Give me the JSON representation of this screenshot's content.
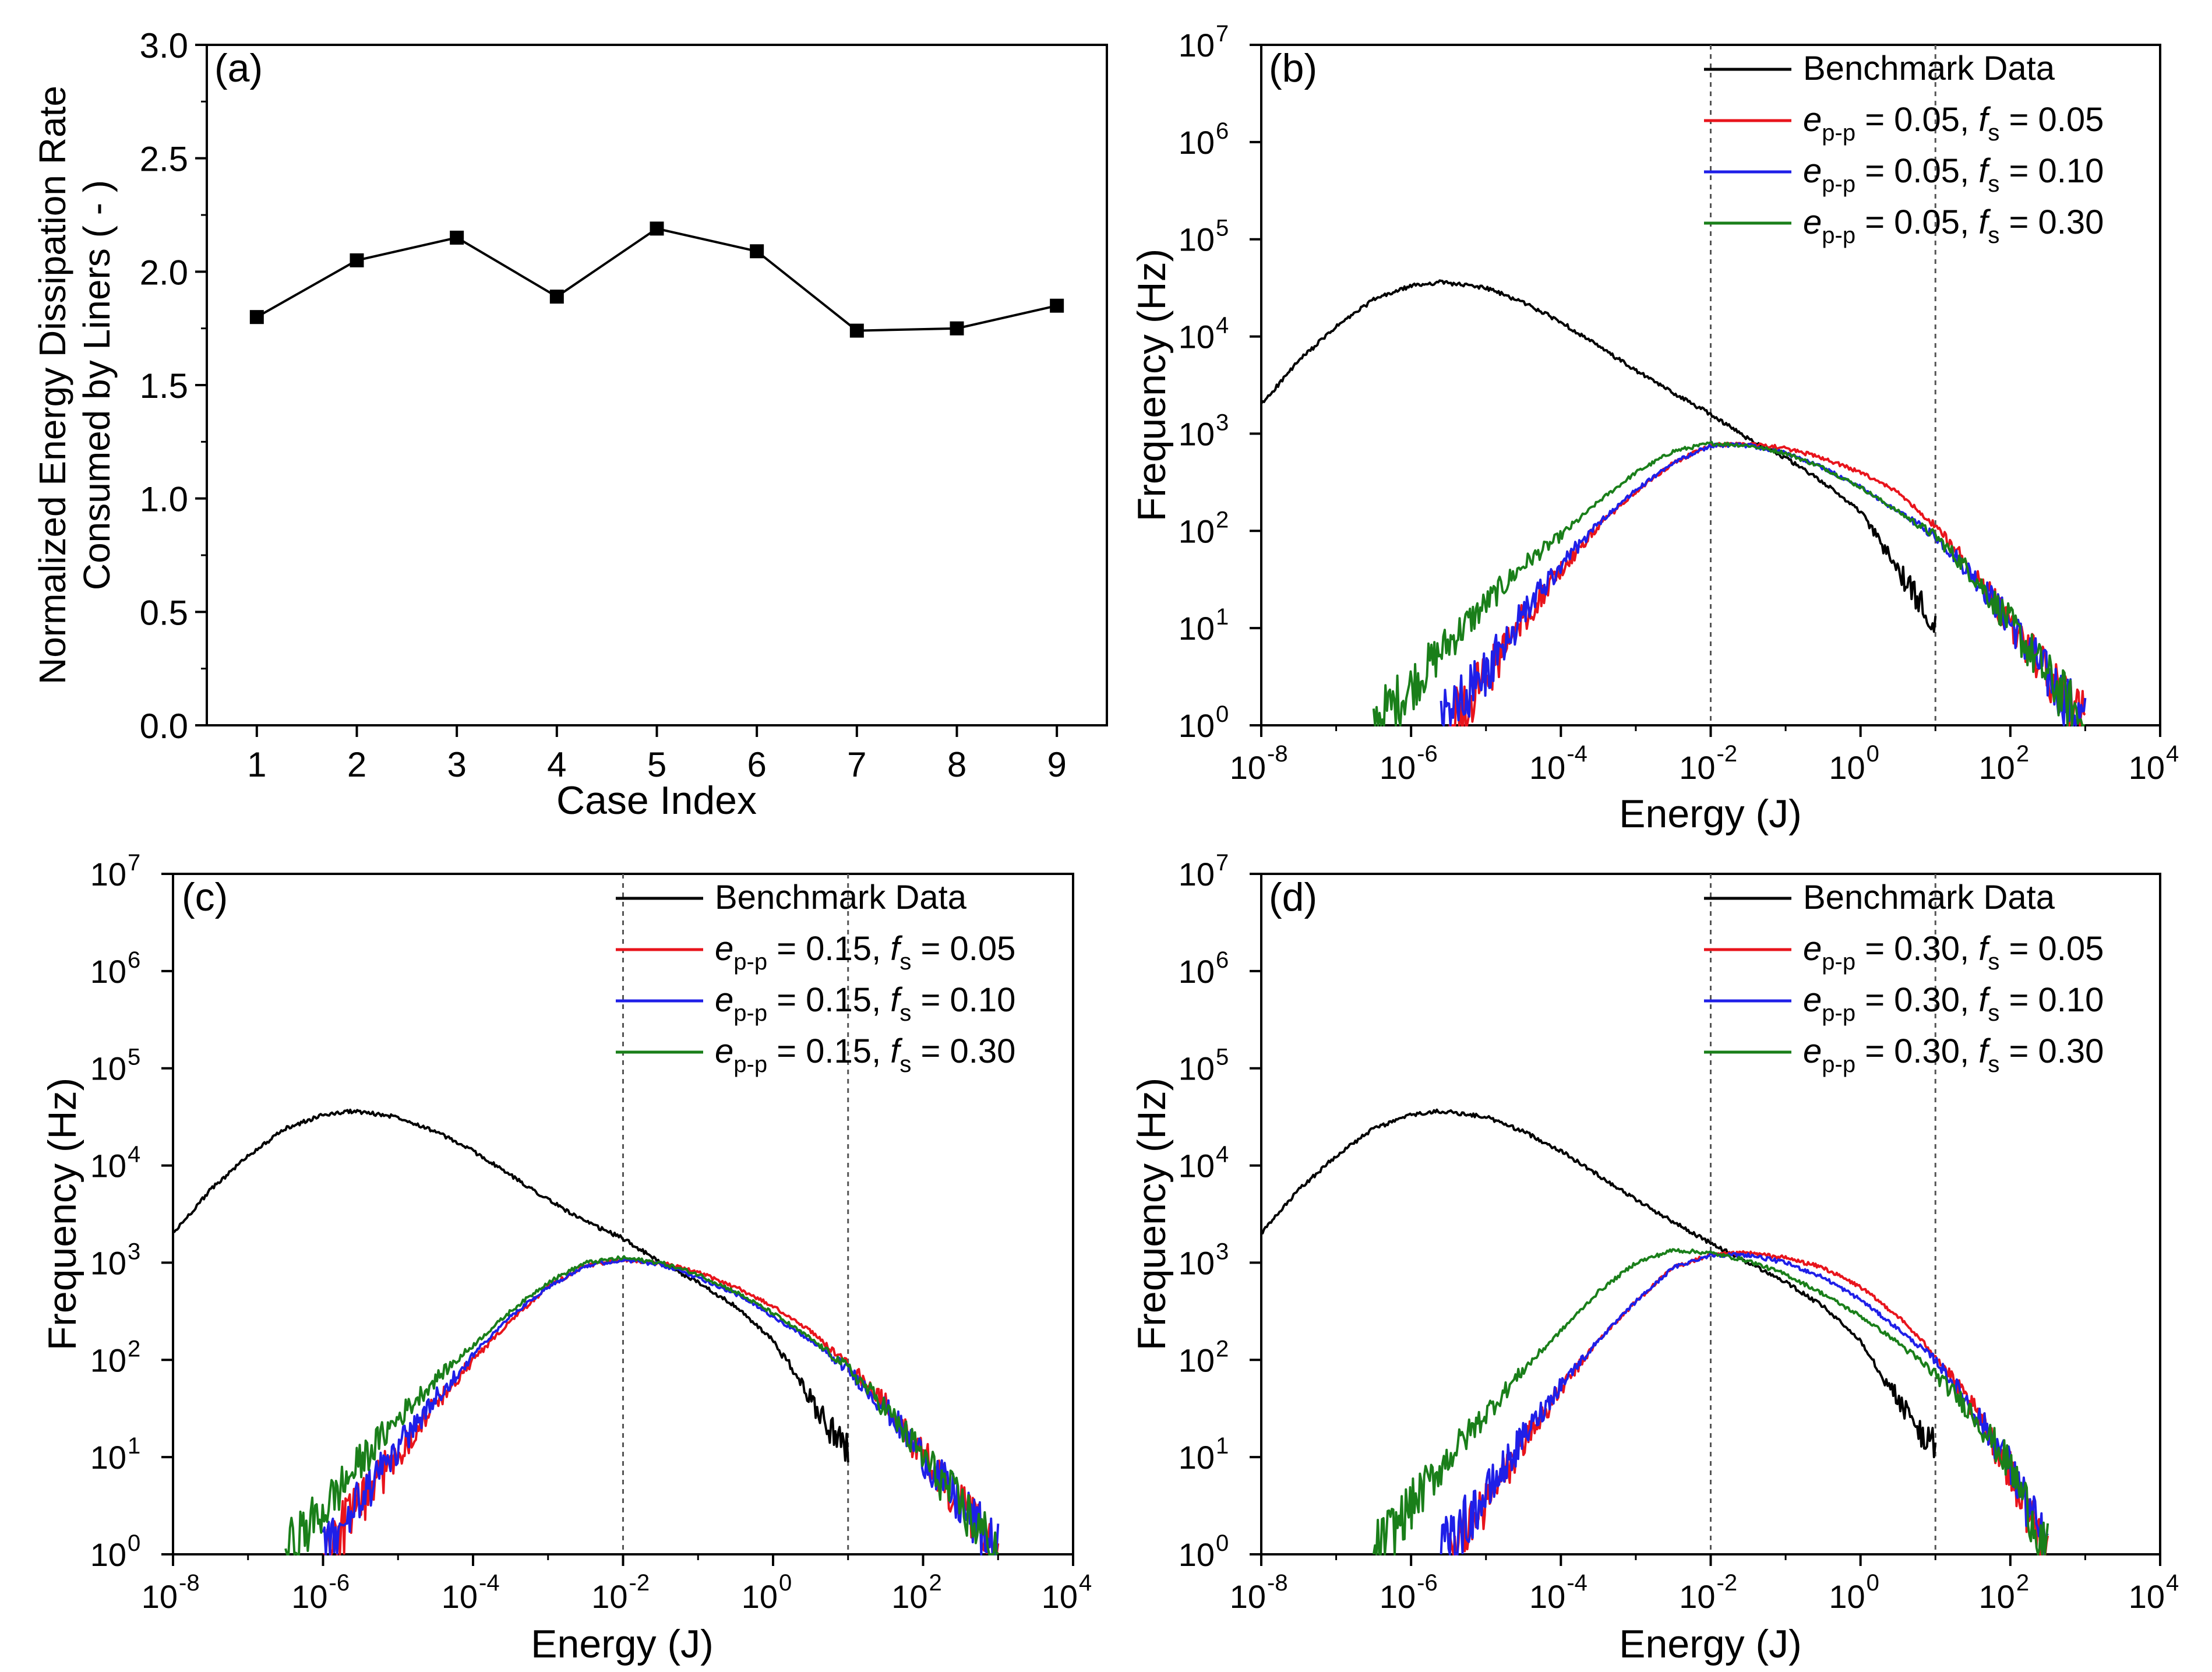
{
  "colors": {
    "benchmark": "#000000",
    "fs_005": "#e8141c",
    "fs_010": "#1f1fe8",
    "fs_030": "#1a7f1a",
    "reference_line": "#555555"
  },
  "chart_data": [
    {
      "id": "a",
      "panel_label": "(a)",
      "type": "line",
      "marker": "square",
      "xlabel": "Case Index",
      "ylabel_lines": [
        "Normalized Energy Dissipation Rate",
        "Consumed by Liners ( - )"
      ],
      "x": [
        1,
        2,
        3,
        4,
        5,
        6,
        7,
        8,
        9
      ],
      "y": [
        1.8,
        2.05,
        2.15,
        1.89,
        2.19,
        2.09,
        1.74,
        1.75,
        1.85
      ],
      "xlim": [
        0.5,
        9.5
      ],
      "ylim": [
        0,
        3
      ],
      "xticks": [
        "1",
        "2",
        "3",
        "4",
        "5",
        "6",
        "7",
        "8",
        "9"
      ],
      "yticks": [
        "0.0",
        "0.5",
        "1.0",
        "1.5",
        "2.0",
        "2.5",
        "3.0"
      ]
    },
    {
      "id": "b",
      "panel_label": "(b)",
      "type": "line",
      "xscale": "log",
      "yscale": "log",
      "xlabel": "Energy (J)",
      "ylabel": "Frequency (Hz)",
      "x_exponents": [
        -8,
        4
      ],
      "y_exponents": [
        0,
        7
      ],
      "xtick_exponents": [
        "-8",
        "-6",
        "-4",
        "-2",
        "0",
        "2",
        "4"
      ],
      "ytick_exponents": [
        "0",
        "1",
        "2",
        "3",
        "4",
        "5",
        "6",
        "7"
      ],
      "reference_lines_x": [
        0.01,
        10
      ],
      "legend_position": "top-right",
      "legend": [
        {
          "text": "Benchmark Data"
        },
        {
          "e": "e",
          "esub": "p-p",
          "mid": " = 0.05, ",
          "f": "f",
          "fsub": "s",
          "end": " = 0.05"
        },
        {
          "e": "e",
          "esub": "p-p",
          "mid": " = 0.05, ",
          "f": "f",
          "fsub": "s",
          "end": " = 0.10"
        },
        {
          "e": "e",
          "esub": "p-p",
          "mid": " = 0.05, ",
          "f": "f",
          "fsub": "s",
          "end": " = 0.30"
        }
      ],
      "series": [
        {
          "name": "Benchmark Data",
          "log10_energy": [
            -8,
            -7.5,
            -7,
            -6.5,
            -6,
            -5.6,
            -5,
            -4.5,
            -4,
            -3.5,
            -3,
            -2.5,
            -2,
            -1.5,
            -1,
            -0.5,
            0,
            0.25,
            0.5,
            0.75,
            1
          ],
          "log10_frequency": [
            3.3,
            3.75,
            4.1,
            4.38,
            4.52,
            4.56,
            4.5,
            4.35,
            4.15,
            3.9,
            3.65,
            3.42,
            3.2,
            2.95,
            2.75,
            2.5,
            2.2,
            1.9,
            1.6,
            1.3,
            1.1
          ]
        },
        {
          "name": "e_pp = 0.05, f_s = 0.05",
          "log10_energy": [
            -5.5,
            -5,
            -4.5,
            -4,
            -3.5,
            -3,
            -2.5,
            -2,
            -1.5,
            -1,
            -0.5,
            0,
            0.5,
            1,
            1.5,
            2,
            2.5,
            3
          ],
          "log10_frequency": [
            0,
            0.5,
            1.1,
            1.6,
            2.05,
            2.4,
            2.7,
            2.88,
            2.9,
            2.85,
            2.75,
            2.6,
            2.4,
            2.05,
            1.6,
            1.05,
            0.5,
            0
          ]
        },
        {
          "name": "e_pp = 0.05, f_s = 0.10",
          "log10_energy": [
            -5.6,
            -5,
            -4.5,
            -4,
            -3.5,
            -3,
            -2.5,
            -2,
            -1.5,
            -1,
            -0.5,
            0,
            0.5,
            1,
            1.5,
            2,
            2.5,
            3
          ],
          "log10_frequency": [
            0,
            0.55,
            1.15,
            1.65,
            2.08,
            2.42,
            2.7,
            2.88,
            2.88,
            2.8,
            2.65,
            2.45,
            2.2,
            1.95,
            1.55,
            1.05,
            0.5,
            0
          ]
        },
        {
          "name": "e_pp = 0.05, f_s = 0.30",
          "log10_energy": [
            -6.5,
            -6,
            -5.5,
            -5,
            -4.5,
            -4,
            -3.5,
            -3,
            -2.5,
            -2,
            -1.5,
            -1,
            -0.5,
            0,
            0.5,
            1,
            1.5,
            2,
            2.5,
            3
          ],
          "log10_frequency": [
            0,
            0.4,
            0.85,
            1.25,
            1.65,
            1.95,
            2.3,
            2.6,
            2.82,
            2.9,
            2.88,
            2.8,
            2.65,
            2.45,
            2.2,
            1.95,
            1.55,
            1.05,
            0.5,
            0
          ]
        }
      ]
    },
    {
      "id": "c",
      "panel_label": "(c)",
      "type": "line",
      "xscale": "log",
      "yscale": "log",
      "xlabel": "Energy (J)",
      "ylabel": "Frequency (Hz)",
      "x_exponents": [
        -8,
        4
      ],
      "y_exponents": [
        0,
        7
      ],
      "xtick_exponents": [
        "-8",
        "-6",
        "-4",
        "-2",
        "0",
        "2",
        "4"
      ],
      "ytick_exponents": [
        "0",
        "1",
        "2",
        "3",
        "4",
        "5",
        "6",
        "7"
      ],
      "reference_lines_x": [
        0.01,
        10
      ],
      "legend_position": "top-right",
      "legend": [
        {
          "text": "Benchmark Data"
        },
        {
          "e": "e",
          "esub": "p-p",
          "mid": " = 0.15, ",
          "f": "f",
          "fsub": "s",
          "end": " = 0.05"
        },
        {
          "e": "e",
          "esub": "p-p",
          "mid": " = 0.15, ",
          "f": "f",
          "fsub": "s",
          "end": " = 0.10"
        },
        {
          "e": "e",
          "esub": "p-p",
          "mid": " = 0.15, ",
          "f": "f",
          "fsub": "s",
          "end": " = 0.30"
        }
      ],
      "series": [
        {
          "name": "Benchmark Data",
          "log10_energy": [
            -8,
            -7.5,
            -7,
            -6.5,
            -6,
            -5.6,
            -5,
            -4.5,
            -4,
            -3.5,
            -3,
            -2.5,
            -2,
            -1.5,
            -1,
            -0.5,
            0,
            0.25,
            0.5,
            0.75,
            1
          ],
          "log10_frequency": [
            3.3,
            3.75,
            4.1,
            4.38,
            4.52,
            4.56,
            4.5,
            4.35,
            4.15,
            3.9,
            3.65,
            3.42,
            3.25,
            3.0,
            2.8,
            2.55,
            2.2,
            1.9,
            1.6,
            1.3,
            1.1
          ]
        },
        {
          "name": "e_pp = 0.15, f_s = 0.05",
          "log10_energy": [
            -6,
            -5.5,
            -5,
            -4.5,
            -4,
            -3.5,
            -3,
            -2.5,
            -2,
            -1.5,
            -1,
            -0.5,
            0,
            0.5,
            1,
            1.5,
            2,
            2.5,
            3
          ],
          "log10_frequency": [
            0,
            0.5,
            1.05,
            1.55,
            2.0,
            2.4,
            2.75,
            2.97,
            3.03,
            3.0,
            2.9,
            2.75,
            2.55,
            2.3,
            1.95,
            1.55,
            1.0,
            0.5,
            0
          ]
        },
        {
          "name": "e_pp = 0.15, f_s = 0.10",
          "log10_energy": [
            -6,
            -5.5,
            -5,
            -4.5,
            -4,
            -3.5,
            -3,
            -2.5,
            -2,
            -1.5,
            -1,
            -0.5,
            0,
            0.5,
            1,
            1.5,
            2,
            2.5,
            3
          ],
          "log10_frequency": [
            0,
            0.55,
            1.1,
            1.6,
            2.05,
            2.45,
            2.75,
            2.97,
            3.03,
            2.98,
            2.85,
            2.68,
            2.45,
            2.2,
            1.9,
            1.5,
            1.0,
            0.5,
            0
          ]
        },
        {
          "name": "e_pp = 0.15, f_s = 0.30",
          "log10_energy": [
            -6.5,
            -6,
            -5.5,
            -5,
            -4.5,
            -4,
            -3.5,
            -3,
            -2.5,
            -2,
            -1.5,
            -1,
            -0.5,
            0,
            0.5,
            1,
            1.5,
            2,
            2.5,
            3
          ],
          "log10_frequency": [
            0,
            0.45,
            0.95,
            1.4,
            1.8,
            2.15,
            2.5,
            2.8,
            3.0,
            3.05,
            3.0,
            2.88,
            2.7,
            2.48,
            2.22,
            1.92,
            1.5,
            1.0,
            0.5,
            0
          ]
        }
      ]
    },
    {
      "id": "d",
      "panel_label": "(d)",
      "type": "line",
      "xscale": "log",
      "yscale": "log",
      "xlabel": "Energy (J)",
      "ylabel": "Frequency (Hz)",
      "x_exponents": [
        -8,
        4
      ],
      "y_exponents": [
        0,
        7
      ],
      "xtick_exponents": [
        "-8",
        "-6",
        "-4",
        "-2",
        "0",
        "2",
        "4"
      ],
      "ytick_exponents": [
        "0",
        "1",
        "2",
        "3",
        "4",
        "5",
        "6",
        "7"
      ],
      "reference_lines_x": [
        0.01,
        10
      ],
      "legend_position": "top-right",
      "legend": [
        {
          "text": "Benchmark Data"
        },
        {
          "e": "e",
          "esub": "p-p",
          "mid": " = 0.30, ",
          "f": "f",
          "fsub": "s",
          "end": " = 0.05"
        },
        {
          "e": "e",
          "esub": "p-p",
          "mid": " = 0.30, ",
          "f": "f",
          "fsub": "s",
          "end": " = 0.10"
        },
        {
          "e": "e",
          "esub": "p-p",
          "mid": " = 0.30, ",
          "f": "f",
          "fsub": "s",
          "end": " = 0.30"
        }
      ],
      "series": [
        {
          "name": "Benchmark Data",
          "log10_energy": [
            -8,
            -7.5,
            -7,
            -6.5,
            -6,
            -5.6,
            -5,
            -4.5,
            -4,
            -3.5,
            -3,
            -2.5,
            -2,
            -1.5,
            -1,
            -0.5,
            0,
            0.25,
            0.5,
            0.75,
            1
          ],
          "log10_frequency": [
            3.3,
            3.75,
            4.1,
            4.38,
            4.52,
            4.56,
            4.5,
            4.35,
            4.15,
            3.9,
            3.65,
            3.42,
            3.2,
            3.0,
            2.8,
            2.55,
            2.2,
            1.9,
            1.6,
            1.3,
            1.1
          ]
        },
        {
          "name": "e_pp = 0.30, f_s = 0.05",
          "log10_energy": [
            -5.5,
            -5,
            -4.5,
            -4,
            -3.5,
            -3,
            -2.5,
            -2,
            -1.5,
            -1,
            -0.5,
            0,
            0.5,
            1,
            1.5,
            2,
            2.5
          ],
          "log10_frequency": [
            0,
            0.5,
            1.15,
            1.7,
            2.2,
            2.6,
            2.95,
            3.08,
            3.1,
            3.05,
            2.95,
            2.75,
            2.45,
            2.05,
            1.5,
            0.85,
            0
          ]
        },
        {
          "name": "e_pp = 0.30, f_s = 0.10",
          "log10_energy": [
            -5.6,
            -5,
            -4.5,
            -4,
            -3.5,
            -3,
            -2.5,
            -2,
            -1.5,
            -1,
            -0.5,
            0,
            0.5,
            1,
            1.5,
            2,
            2.5
          ],
          "log10_frequency": [
            0,
            0.6,
            1.2,
            1.75,
            2.2,
            2.6,
            2.95,
            3.08,
            3.08,
            3.0,
            2.85,
            2.62,
            2.32,
            2.0,
            1.5,
            0.9,
            0
          ]
        },
        {
          "name": "e_pp = 0.30, f_s = 0.30",
          "log10_energy": [
            -6.5,
            -6,
            -5.5,
            -5,
            -4.5,
            -4,
            -3.5,
            -3,
            -2.5,
            -2,
            -1.5,
            -1,
            -0.5,
            0,
            0.5,
            1,
            1.5,
            2,
            2.5
          ],
          "log10_frequency": [
            0,
            0.5,
            1.0,
            1.45,
            1.9,
            2.3,
            2.7,
            3.0,
            3.13,
            3.1,
            3.02,
            2.88,
            2.68,
            2.45,
            2.18,
            1.85,
            1.45,
            0.9,
            0
          ]
        }
      ]
    }
  ]
}
